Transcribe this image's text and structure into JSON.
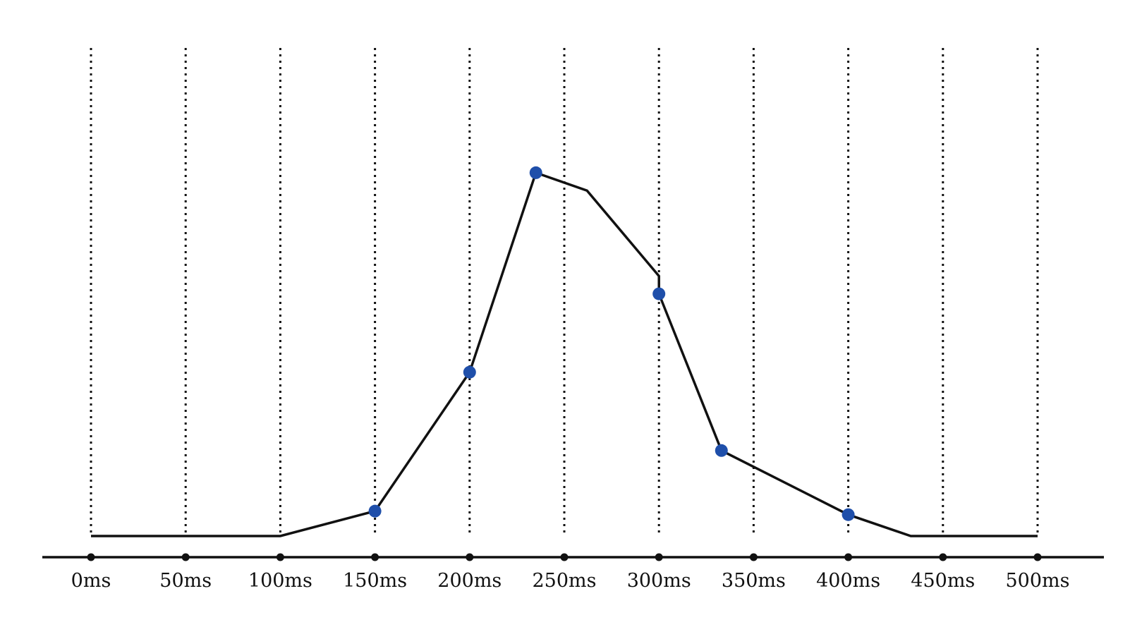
{
  "chart_data": {
    "type": "line",
    "title": "",
    "xlabel": "",
    "ylabel": "",
    "x_unit": "ms",
    "xlim": [
      0,
      500
    ],
    "ylim": [
      0,
      100
    ],
    "grid": "vertical dotted guides at tick positions",
    "legend": "none",
    "colors": {
      "line": "#111111",
      "marker": "#1f4faa",
      "guide": "#111111"
    },
    "x_ticks": [
      {
        "value": 0,
        "label": "0ms"
      },
      {
        "value": 50,
        "label": "50ms"
      },
      {
        "value": 100,
        "label": "100ms"
      },
      {
        "value": 150,
        "label": "150ms"
      },
      {
        "value": 200,
        "label": "200ms"
      },
      {
        "value": 250,
        "label": "250ms"
      },
      {
        "value": 300,
        "label": "300ms"
      },
      {
        "value": 350,
        "label": "350ms"
      },
      {
        "value": 400,
        "label": "400ms"
      },
      {
        "value": 450,
        "label": "450ms"
      },
      {
        "value": 500,
        "label": "500ms"
      }
    ],
    "series": [
      {
        "points": [
          {
            "x": 0,
            "y": 0
          },
          {
            "x": 100,
            "y": 0
          },
          {
            "x": 150,
            "y": 7
          },
          {
            "x": 200,
            "y": 46
          },
          {
            "x": 235,
            "y": 102
          },
          {
            "x": 262,
            "y": 97
          },
          {
            "x": 300,
            "y": 73
          },
          {
            "x": 300,
            "y": 68
          },
          {
            "x": 333,
            "y": 24
          },
          {
            "x": 400,
            "y": 6
          },
          {
            "x": 433,
            "y": 0
          },
          {
            "x": 500,
            "y": 0
          }
        ],
        "markers": [
          {
            "x": 150,
            "y": 7
          },
          {
            "x": 200,
            "y": 46
          },
          {
            "x": 235,
            "y": 102
          },
          {
            "x": 300,
            "y": 68
          },
          {
            "x": 333,
            "y": 24
          },
          {
            "x": 400,
            "y": 6
          }
        ]
      }
    ]
  }
}
